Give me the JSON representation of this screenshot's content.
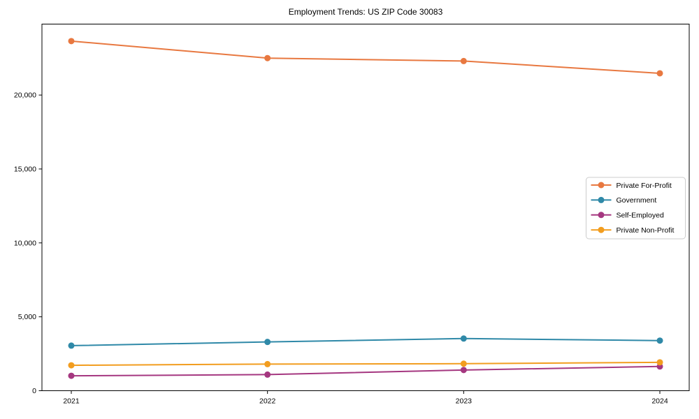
{
  "figure": {
    "title": "Employment Trends: US ZIP Code 30083"
  },
  "chart_data": {
    "type": "line",
    "title": "Employment Trends: US ZIP Code 30083",
    "xlabel": "",
    "ylabel": "",
    "categories": [
      "2021",
      "2022",
      "2023",
      "2024"
    ],
    "series": [
      {
        "name": "Private For-Profit",
        "color": "#E87840",
        "values": [
          23650,
          22500,
          22300,
          21470
        ]
      },
      {
        "name": "Government",
        "color": "#2F89A8",
        "values": [
          3050,
          3300,
          3530,
          3390
        ]
      },
      {
        "name": "Self-Employed",
        "color": "#A53780",
        "values": [
          1010,
          1090,
          1400,
          1640
        ]
      },
      {
        "name": "Private Non-Profit",
        "color": "#F29D1F",
        "values": [
          1720,
          1800,
          1830,
          1920
        ]
      }
    ],
    "ylim": [
      0,
      24800
    ],
    "yticks": [
      0,
      5000,
      10000,
      15000,
      20000
    ],
    "ytick_labels": [
      "0",
      "5,000",
      "10,000",
      "15,000",
      "20,000"
    ],
    "grid": false,
    "legend_position": "center-right",
    "axis_color": "#000000",
    "legend_border_color": "#cccccc",
    "legend_background": "#ffffff"
  }
}
